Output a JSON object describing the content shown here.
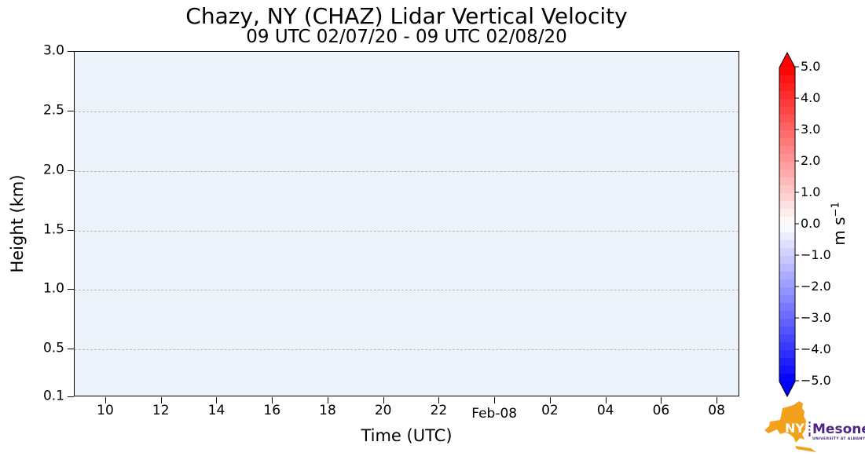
{
  "title": "Chazy, NY (CHAZ) Lidar Vertical Velocity",
  "subtitle": "09 UTC 02/07/20 - 09 UTC 02/08/20",
  "chart_data": {
    "type": "heatmap",
    "title": "Chazy, NY (CHAZ) Lidar Vertical Velocity",
    "subtitle": "09 UTC 02/07/20 - 09 UTC 02/08/20",
    "xlabel": "Time (UTC)",
    "ylabel": "Height (km)",
    "x_ticks": [
      {
        "label": "10",
        "hour": 10
      },
      {
        "label": "12",
        "hour": 12
      },
      {
        "label": "14",
        "hour": 14
      },
      {
        "label": "16",
        "hour": 16
      },
      {
        "label": "18",
        "hour": 18
      },
      {
        "label": "20",
        "hour": 20
      },
      {
        "label": "22",
        "hour": 22
      },
      {
        "label": "Feb-08",
        "hour": 24,
        "day_label": true
      },
      {
        "label": "02",
        "hour": 26
      },
      {
        "label": "04",
        "hour": 28
      },
      {
        "label": "06",
        "hour": 30
      },
      {
        "label": "08",
        "hour": 32
      }
    ],
    "y_ticks": [
      {
        "label": "3.0",
        "value": 3.0
      },
      {
        "label": "2.5",
        "value": 2.5
      },
      {
        "label": "2.0",
        "value": 2.0
      },
      {
        "label": "1.5",
        "value": 1.5
      },
      {
        "label": "1.0",
        "value": 1.0
      },
      {
        "label": "0.5",
        "value": 0.5
      },
      {
        "label": "0.1",
        "value": 0.1
      }
    ],
    "ylim": [
      0.1,
      3.0
    ],
    "time_span_hours": 24,
    "grid": "horizontal dashed",
    "plot_background": "#ecf3fb",
    "data_points": [],
    "colorbar": {
      "label_base": "m s",
      "label_exp": "−1",
      "colormap": "bwr",
      "vmin": -5.0,
      "vmax": 5.0,
      "step": 0.25,
      "extend": "both",
      "ticks": [
        {
          "label": "5.0",
          "value": 5.0
        },
        {
          "label": "4.0",
          "value": 4.0
        },
        {
          "label": "3.0",
          "value": 3.0
        },
        {
          "label": "2.0",
          "value": 2.0
        },
        {
          "label": "1.0",
          "value": 1.0
        },
        {
          "label": "0.0",
          "value": 0.0
        },
        {
          "label": "−1.0",
          "value": -1.0
        },
        {
          "label": "−2.0",
          "value": -2.0
        },
        {
          "label": "−3.0",
          "value": -3.0
        },
        {
          "label": "−4.0",
          "value": -4.0
        },
        {
          "label": "−5.0",
          "value": -5.0
        }
      ]
    }
  },
  "logo": {
    "abbr": "NYS",
    "name": "Mesonet",
    "tagline": "UNIVERSITY AT ALBANY",
    "state_color": "#F1A11C",
    "text_color": "#4F2683"
  }
}
